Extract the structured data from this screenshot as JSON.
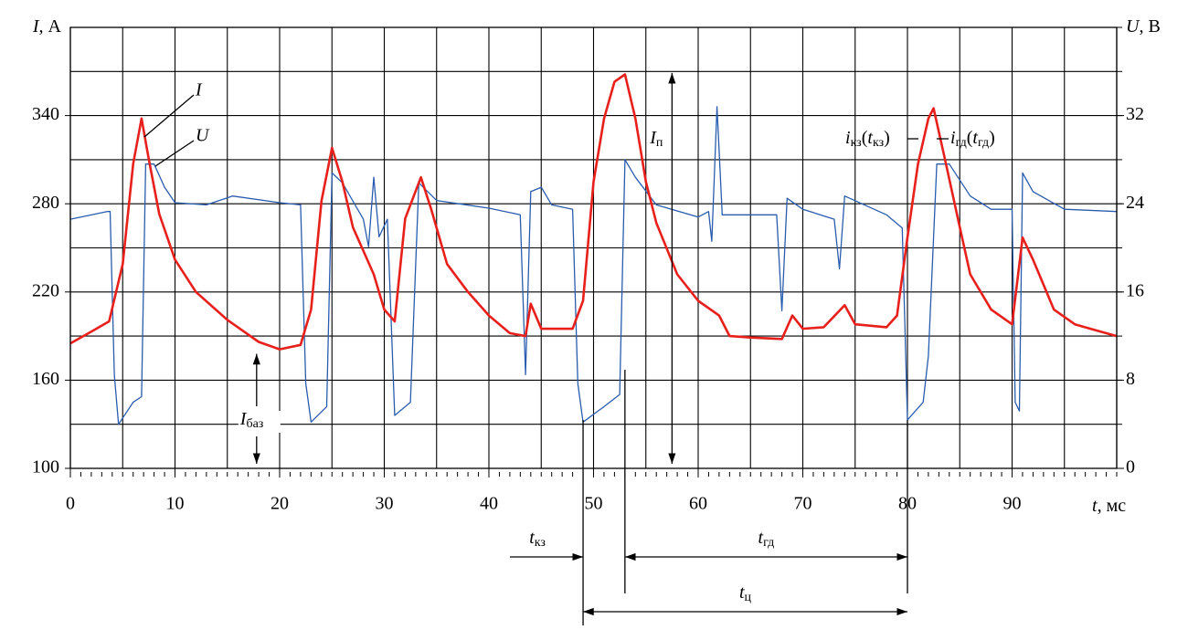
{
  "chart_data": {
    "type": "line",
    "y_label": [
      {
        "text": "I",
        "style": "italic"
      },
      {
        "text": ", А"
      }
    ],
    "y2_label": [
      {
        "text": "U",
        "style": "italic"
      },
      {
        "text": ", В"
      }
    ],
    "x_label": [
      {
        "text": "t",
        "style": "italic"
      },
      {
        "text": ", мс"
      }
    ],
    "xlim": [
      0,
      100
    ],
    "xticks": [
      0,
      10,
      20,
      30,
      40,
      50,
      60,
      70,
      80,
      90
    ],
    "xgrid": [
      0,
      5,
      10,
      15,
      20,
      25,
      30,
      35,
      40,
      45,
      50,
      55,
      60,
      65,
      70,
      75,
      80,
      85,
      90,
      95,
      100
    ],
    "minor_xtick_step": 1,
    "ylim": [
      100,
      400
    ],
    "yticks": [
      100,
      160,
      220,
      280,
      340
    ],
    "ygrid": [
      100,
      130,
      160,
      190,
      220,
      250,
      280,
      310,
      340,
      370,
      400
    ],
    "y2lim": [
      0,
      40
    ],
    "y2ticks": [
      0,
      8,
      16,
      24,
      32
    ],
    "grid": true,
    "series": [
      {
        "name": "I",
        "color": "#e8201c",
        "axis": "y",
        "x": [
          0,
          2,
          3.7,
          5,
          6,
          6.8,
          7.5,
          8.5,
          10,
          12,
          15,
          18,
          20,
          22,
          23,
          24,
          25,
          26,
          27,
          29,
          30,
          31,
          32,
          33.5,
          34.5,
          36,
          38,
          40,
          42,
          43.5,
          44,
          45,
          48,
          49,
          50,
          51,
          52,
          53,
          54,
          55,
          56,
          58,
          60,
          62,
          63,
          65,
          68,
          69,
          70,
          72,
          74,
          75,
          78,
          79,
          80,
          81,
          82,
          82.5,
          83.5,
          85,
          86,
          88,
          90,
          91,
          92,
          94,
          96,
          98,
          100
        ],
        "values": [
          185,
          193,
          200,
          239,
          307,
          338,
          310,
          273,
          242,
          220,
          201,
          186,
          181,
          184,
          208,
          282,
          318,
          295,
          264,
          232,
          208,
          200,
          270,
          298,
          276,
          239,
          220,
          204,
          192,
          190,
          212,
          195,
          195,
          214,
          295,
          338,
          363,
          368,
          338,
          295,
          267,
          232,
          214,
          204,
          190,
          189,
          188,
          204,
          195,
          196,
          211,
          198,
          196,
          204,
          257,
          307,
          338,
          345,
          313,
          264,
          232,
          208,
          198,
          257,
          242,
          208,
          198,
          194,
          190
        ]
      },
      {
        "name": "U",
        "color": "#2a5cae",
        "axis": "y2",
        "x": [
          0,
          3.5,
          3.8,
          4.2,
          4.6,
          6,
          6.8,
          7.2,
          8,
          9,
          10,
          13,
          15.5,
          20,
          22,
          22.5,
          23,
          24.5,
          25,
          26,
          28,
          28.5,
          29,
          29.5,
          30.3,
          31,
          32.5,
          33.3,
          35,
          40,
          43,
          43.5,
          44,
          45,
          46,
          48,
          48.5,
          49,
          51,
          52.5,
          53,
          54,
          56,
          60,
          61,
          61.3,
          61.8,
          62.3,
          65,
          67.5,
          68,
          68.5,
          70,
          73,
          73.5,
          74,
          78,
          79.5,
          80,
          81.5,
          82,
          82.8,
          84,
          86,
          88,
          90,
          90.3,
          90.7,
          91,
          92,
          95,
          100
        ],
        "values": [
          22.6,
          23.3,
          23.3,
          8.5,
          4,
          6,
          6.5,
          27.6,
          27.6,
          25.5,
          24.1,
          23.9,
          24.7,
          24.1,
          23.9,
          7.7,
          4.2,
          5.6,
          26.8,
          25.9,
          22.6,
          20.1,
          26.4,
          21,
          22.6,
          4.8,
          6,
          25.9,
          24.3,
          23.6,
          23,
          8.5,
          25.1,
          25.5,
          23.9,
          23.5,
          7.7,
          4.2,
          5.6,
          6.7,
          28,
          26.4,
          23.9,
          22.8,
          23.3,
          20.6,
          32.8,
          23,
          23,
          23,
          14.3,
          24.5,
          23.5,
          22.6,
          18.1,
          24.7,
          23,
          21.8,
          4.4,
          6,
          10.2,
          27.6,
          27.6,
          24.7,
          23.5,
          23.5,
          6,
          5.2,
          26.8,
          25.1,
          23.5,
          23.3
        ]
      }
    ],
    "current_dimensions": [
      {
        "label": [
          {
            "text": "I",
            "style": "italic"
          },
          {
            "text": "п",
            "style": "sub"
          }
        ],
        "x": 57.5,
        "from": 369,
        "to": 100
      },
      {
        "label": [
          {
            "text": "I",
            "style": "italic"
          },
          {
            "text": "баз",
            "style": "sub"
          }
        ],
        "x": 17.8,
        "from": 181,
        "to": 100
      }
    ],
    "time_intervals": [
      {
        "label": [
          {
            "text": "t",
            "style": "italic"
          },
          {
            "text": "кз",
            "style": "sub"
          }
        ],
        "from": 49,
        "to": 53
      },
      {
        "label": [
          {
            "text": "t",
            "style": "italic"
          },
          {
            "text": "гд",
            "style": "sub"
          }
        ],
        "from": 53,
        "to": 80
      },
      {
        "label": [
          {
            "text": "t",
            "style": "italic"
          },
          {
            "text": "ц",
            "style": "sub"
          }
        ],
        "from": 49,
        "to": 80
      }
    ],
    "point_labels": [
      [
        {
          "text": "i",
          "style": "italic"
        },
        {
          "text": "кз",
          "style": "sub"
        },
        {
          "text": "("
        },
        {
          "text": "t",
          "style": "italic"
        },
        {
          "text": "кз",
          "style": "sub"
        },
        {
          "text": ")"
        }
      ],
      [
        {
          "text": "i",
          "style": "italic"
        },
        {
          "text": "гд",
          "style": "sub"
        },
        {
          "text": "("
        },
        {
          "text": "t",
          "style": "italic"
        },
        {
          "text": "гд",
          "style": "sub"
        },
        {
          "text": ")"
        }
      ]
    ]
  }
}
